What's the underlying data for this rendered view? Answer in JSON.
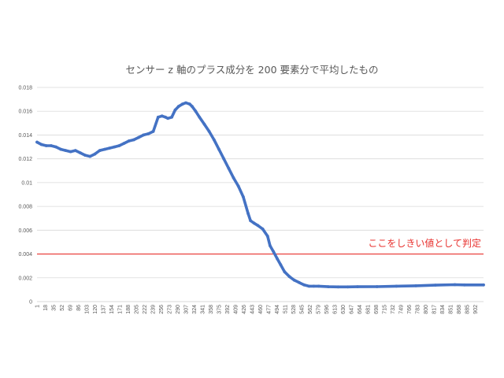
{
  "chart_data": {
    "type": "line",
    "title": "センサー z 軸のプラス成分を 200 要素分で平均したもの",
    "xlabel": "",
    "ylabel": "",
    "ylim": [
      0,
      0.018
    ],
    "y_ticks": [
      "0",
      "0.002",
      "0.004",
      "0.006",
      "0.008",
      "0.01",
      "0.012",
      "0.014",
      "0.016",
      "0.018"
    ],
    "x_range": [
      1,
      919
    ],
    "x_tick_labels": [
      "1",
      "18",
      "35",
      "52",
      "69",
      "86",
      "103",
      "120",
      "137",
      "154",
      "171",
      "188",
      "205",
      "222",
      "239",
      "256",
      "273",
      "290",
      "307",
      "324",
      "341",
      "358",
      "375",
      "392",
      "409",
      "426",
      "443",
      "460",
      "477",
      "494",
      "511",
      "528",
      "545",
      "562",
      "579",
      "596",
      "613",
      "630",
      "647",
      "664",
      "681",
      "698",
      "715",
      "732",
      "749",
      "766",
      "783",
      "800",
      "817",
      "834",
      "851",
      "868",
      "885",
      "902"
    ],
    "grid": "horizontal",
    "legend": "none",
    "series_color": "#4472c4",
    "series": [
      {
        "x": [
          1,
          10,
          20,
          30,
          40,
          50,
          60,
          70,
          80,
          90,
          100,
          110,
          120,
          130,
          140,
          150,
          160,
          170,
          180,
          190,
          200,
          210,
          220,
          230,
          240,
          250,
          258,
          265,
          270,
          278,
          285,
          292,
          300,
          307,
          315,
          320,
          327,
          335,
          345,
          355,
          365,
          375,
          385,
          395,
          405,
          415,
          425,
          435,
          440,
          447,
          455,
          465,
          475,
          480,
          487,
          495,
          502,
          510,
          520,
          530,
          540,
          550,
          560,
          570,
          580,
          600,
          620,
          640,
          660,
          700,
          740,
          780,
          820,
          860,
          880,
          919
        ],
        "y": [
          0.0134,
          0.0132,
          0.0131,
          0.0131,
          0.013,
          0.0128,
          0.0127,
          0.0126,
          0.0127,
          0.0125,
          0.0123,
          0.0122,
          0.0124,
          0.0127,
          0.0128,
          0.0129,
          0.013,
          0.0131,
          0.0133,
          0.0135,
          0.0136,
          0.0138,
          0.014,
          0.0141,
          0.0143,
          0.0155,
          0.0156,
          0.0155,
          0.0154,
          0.0155,
          0.0161,
          0.0164,
          0.0166,
          0.0167,
          0.0166,
          0.0164,
          0.016,
          0.0155,
          0.0149,
          0.0143,
          0.0136,
          0.0128,
          0.012,
          0.0112,
          0.0104,
          0.0097,
          0.0088,
          0.0074,
          0.0068,
          0.0066,
          0.0064,
          0.0061,
          0.0055,
          0.0047,
          0.0042,
          0.0036,
          0.0031,
          0.0025,
          0.0021,
          0.0018,
          0.0016,
          0.0014,
          0.0013,
          0.0013,
          0.0013,
          0.00125,
          0.00124,
          0.00124,
          0.00125,
          0.00126,
          0.0013,
          0.00133,
          0.00138,
          0.00142,
          0.0014,
          0.0014
        ]
      }
    ],
    "threshold": {
      "value": 0.004,
      "color": "#e8322f",
      "label": "ここをしきい値として判定"
    }
  }
}
